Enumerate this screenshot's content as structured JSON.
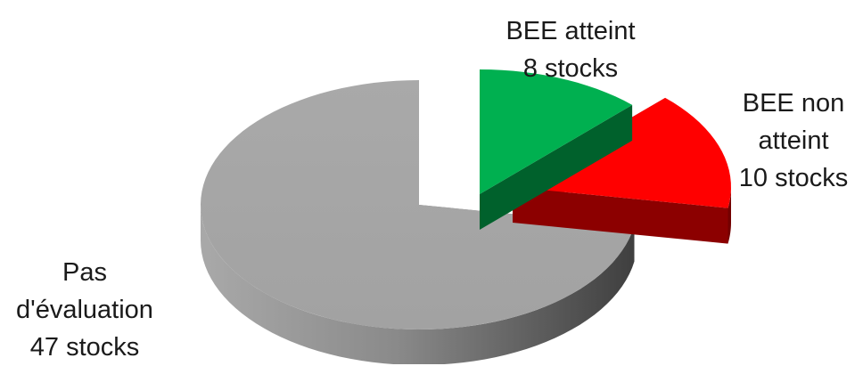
{
  "chart_data": {
    "type": "pie",
    "style": "3d-exploded",
    "slices": [
      {
        "name": "BEE atteint",
        "value": 8,
        "unit": "stocks",
        "label_lines": [
          "BEE atteint",
          "8 stocks"
        ],
        "color": "#00b050"
      },
      {
        "name": "BEE non atteint",
        "value": 10,
        "unit": "stocks",
        "label_lines": [
          "BEE non",
          "atteint",
          "10 stocks"
        ],
        "color": "#ff0000"
      },
      {
        "name": "Pas d'évaluation",
        "value": 47,
        "unit": "stocks",
        "label_lines": [
          "Pas",
          "d'évaluation",
          "47 stocks"
        ],
        "color": "#a6a6a6"
      }
    ],
    "legend": "none",
    "title": ""
  }
}
